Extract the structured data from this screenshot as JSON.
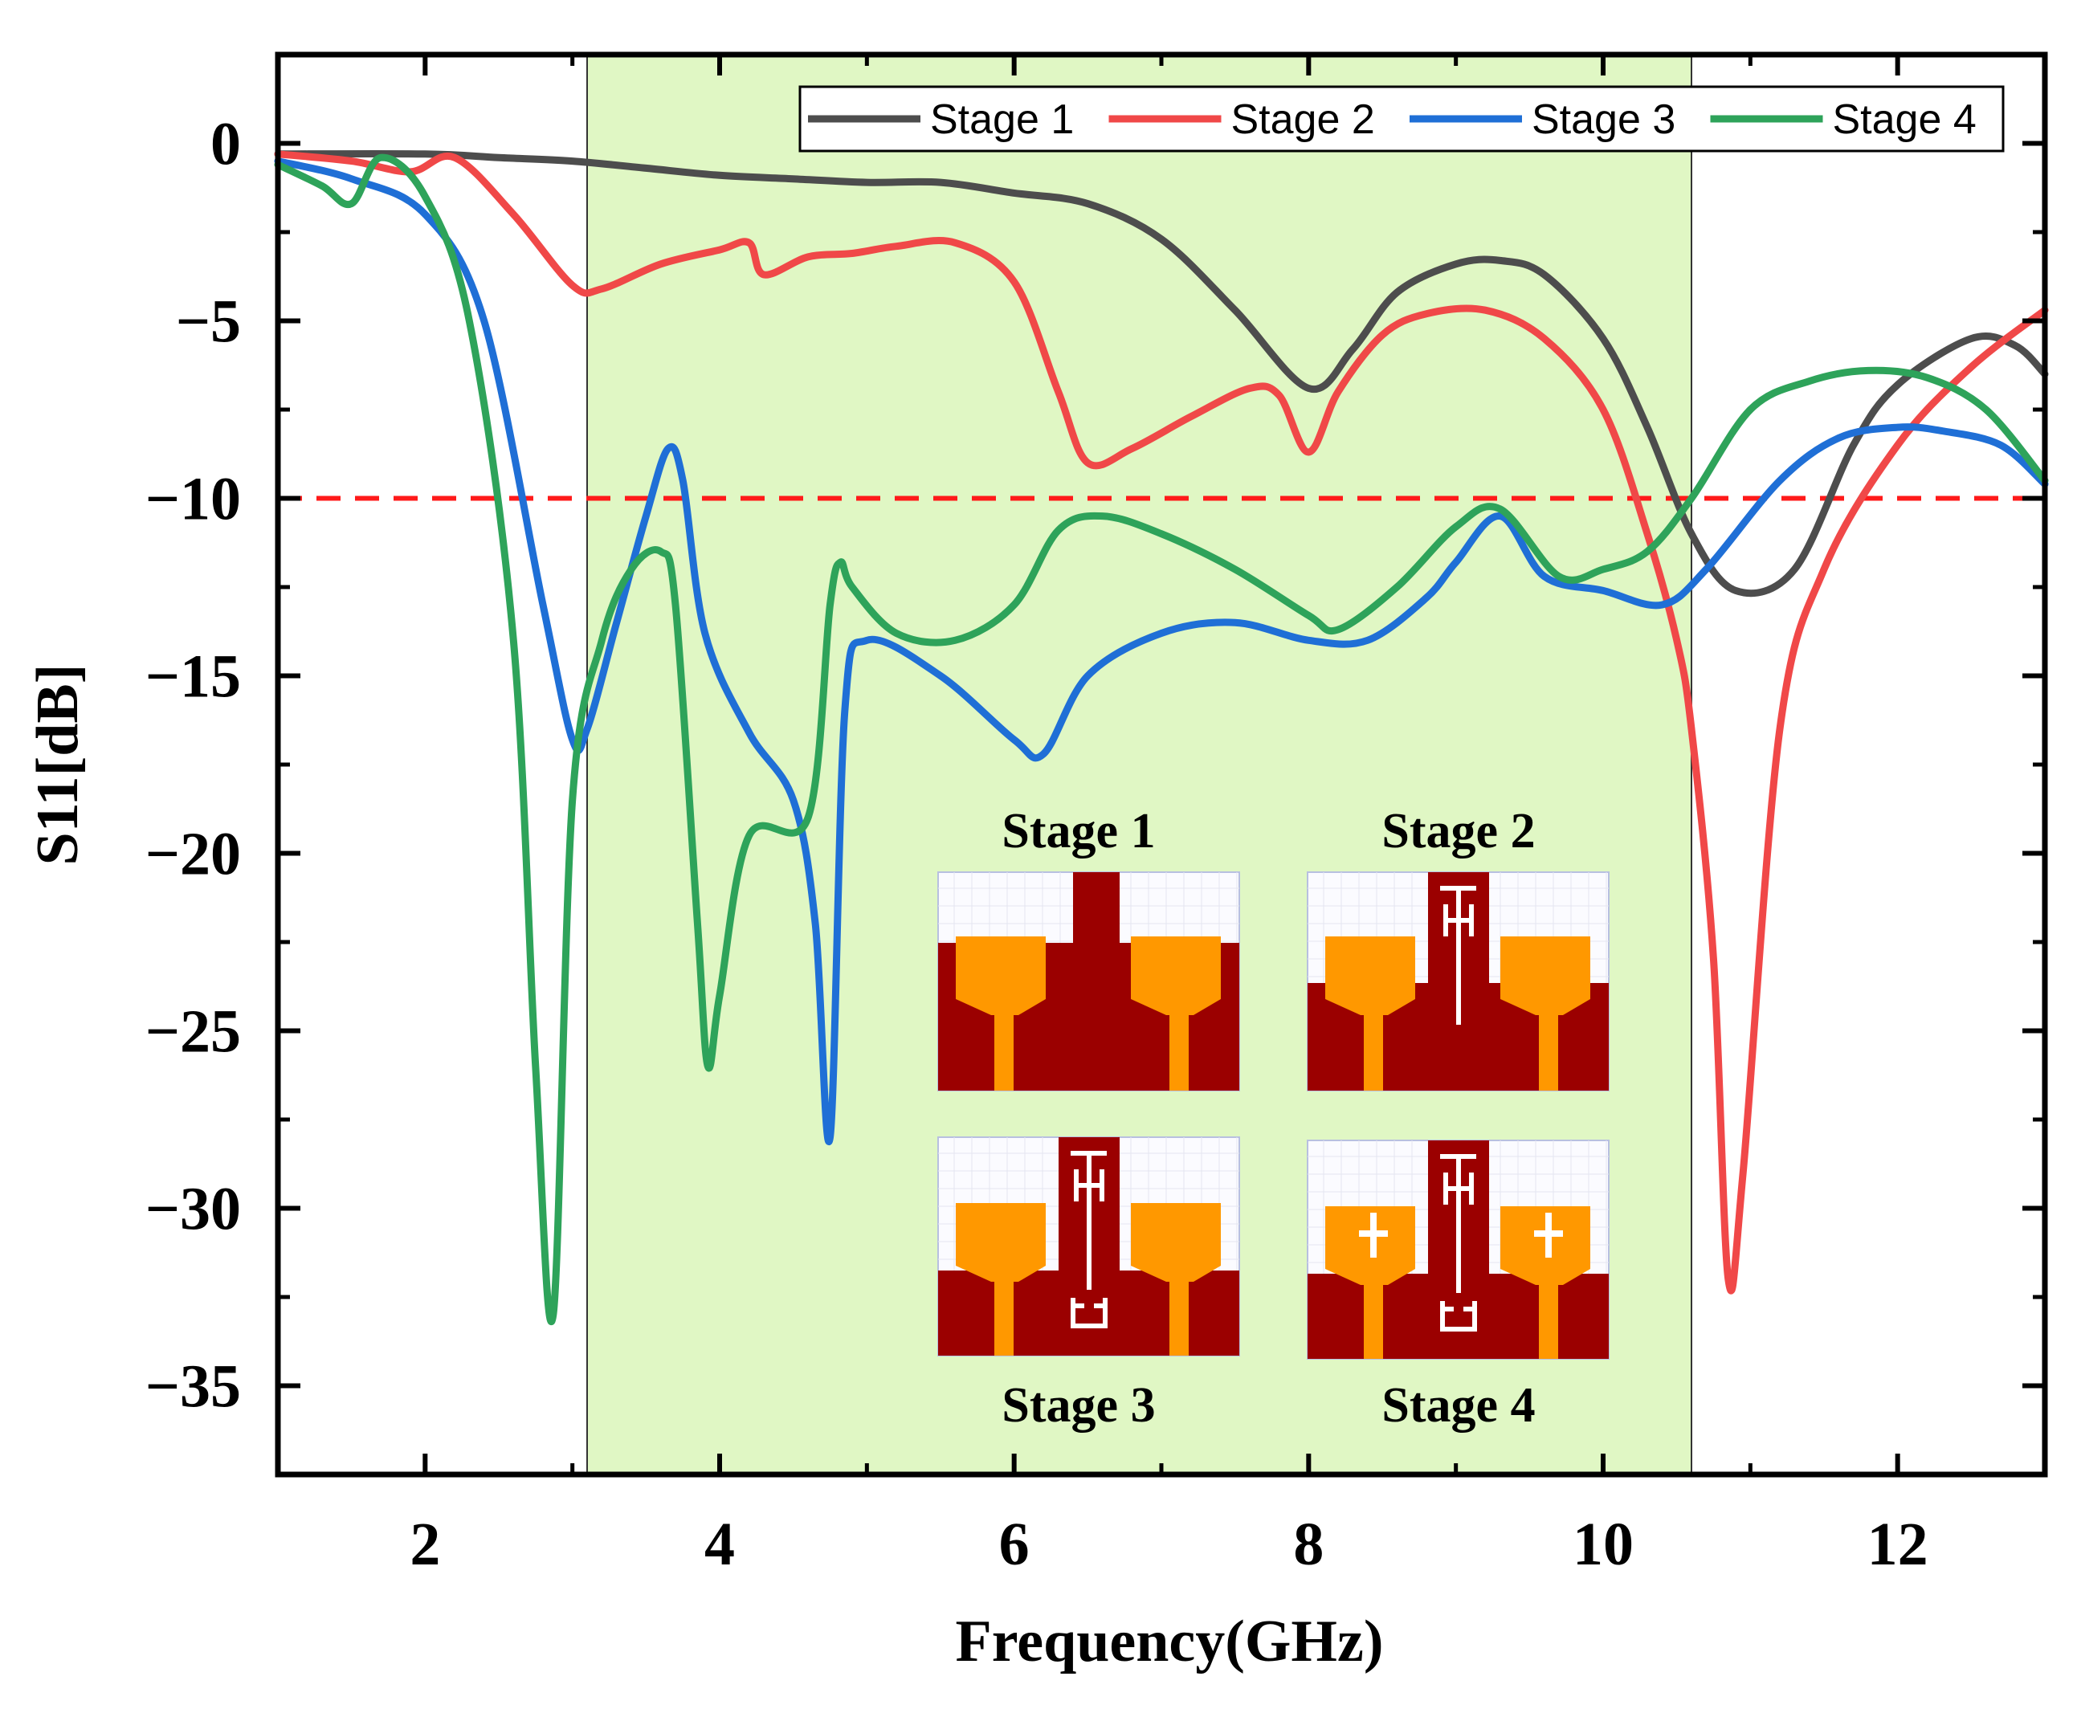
{
  "chart_data": {
    "type": "line",
    "xlabel": "Frequency(GHz)",
    "ylabel": "S11[dB]",
    "xlim": [
      1,
      13
    ],
    "ylim": [
      -37.5,
      2.5
    ],
    "xticks": [
      2,
      4,
      6,
      8,
      10,
      12
    ],
    "xtick_labels": [
      "2",
      "4",
      "6",
      "8",
      "10",
      "12"
    ],
    "yticks": [
      0,
      -5,
      -10,
      -15,
      -20,
      -25,
      -30,
      -35
    ],
    "ytick_labels": [
      "0",
      "−5",
      "−10",
      "−15",
      "−20",
      "−25",
      "−30",
      "−35"
    ],
    "grid": false,
    "legend_position": "top-right",
    "highlight_band": {
      "x_from": 3.1,
      "x_to": 10.6,
      "color": "#e0f7c4"
    },
    "reference_line": {
      "y": -10,
      "color": "#ff1a1a",
      "style": "dashed"
    },
    "series": [
      {
        "name": "Stage 1",
        "color": "#4d4d4d",
        "x": [
          1.0,
          2.0,
          2.5,
          3.0,
          3.5,
          4.0,
          4.5,
          5.0,
          5.5,
          6.0,
          6.5,
          7.0,
          7.5,
          8.0,
          8.3,
          8.6,
          9.0,
          9.3,
          9.6,
          10.0,
          10.3,
          10.6,
          10.9,
          11.3,
          11.7,
          12.0,
          12.5,
          12.8,
          13.0
        ],
        "y": [
          -0.3,
          -0.3,
          -0.4,
          -0.5,
          -0.7,
          -0.9,
          -1.0,
          -1.1,
          -1.1,
          -1.4,
          -1.7,
          -2.7,
          -4.7,
          -6.9,
          -5.8,
          -4.2,
          -3.4,
          -3.3,
          -3.7,
          -5.5,
          -8.0,
          -11.0,
          -12.6,
          -12.0,
          -8.5,
          -6.8,
          -5.5,
          -5.7,
          -6.5
        ]
      },
      {
        "name": "Stage 2",
        "color": "#f04848",
        "x": [
          1.0,
          1.5,
          1.9,
          2.2,
          2.6,
          3.0,
          3.2,
          3.6,
          4.0,
          4.2,
          4.3,
          4.6,
          4.9,
          5.2,
          5.6,
          6.0,
          6.3,
          6.5,
          6.8,
          7.2,
          7.6,
          7.8,
          8.0,
          8.2,
          8.5,
          8.8,
          9.2,
          9.6,
          10.0,
          10.3,
          10.5,
          10.6,
          10.75,
          10.85,
          10.95,
          11.2,
          11.5,
          12.0,
          12.5,
          13.0
        ],
        "y": [
          -0.3,
          -0.5,
          -0.8,
          -0.4,
          -2.0,
          -4.0,
          -4.1,
          -3.4,
          -3.0,
          -2.8,
          -3.7,
          -3.2,
          -3.1,
          -2.9,
          -2.8,
          -3.9,
          -7.0,
          -9.0,
          -8.6,
          -7.7,
          -6.9,
          -7.1,
          -8.7,
          -7.0,
          -5.4,
          -4.8,
          -4.7,
          -5.5,
          -7.5,
          -11.0,
          -14.0,
          -16.5,
          -23.0,
          -32.0,
          -29.0,
          -16.5,
          -12.0,
          -8.5,
          -6.3,
          -4.7
        ]
      },
      {
        "name": "Stage 3",
        "color": "#1f6fd6",
        "x": [
          1.0,
          1.5,
          2.0,
          2.4,
          2.8,
          3.0,
          3.1,
          3.3,
          3.5,
          3.65,
          3.75,
          3.9,
          4.2,
          4.5,
          4.65,
          4.75,
          4.85,
          5.0,
          5.5,
          6.0,
          6.2,
          6.5,
          7.0,
          7.5,
          8.0,
          8.4,
          8.8,
          9.0,
          9.3,
          9.6,
          10.0,
          10.4,
          10.7,
          11.2,
          11.6,
          12.0,
          12.3,
          12.7,
          13.0
        ],
        "y": [
          -0.5,
          -1.0,
          -2.0,
          -5.0,
          -13.0,
          -16.8,
          -16.5,
          -13.5,
          -10.5,
          -8.6,
          -9.5,
          -13.8,
          -16.6,
          -18.5,
          -22.0,
          -28.0,
          -16.0,
          -14.0,
          -15.0,
          -16.8,
          -17.2,
          -15.0,
          -13.8,
          -13.5,
          -14.0,
          -14.0,
          -12.8,
          -11.8,
          -10.5,
          -12.2,
          -12.6,
          -13.0,
          -12.0,
          -9.5,
          -8.3,
          -8.0,
          -8.1,
          -8.5,
          -9.6
        ]
      },
      {
        "name": "Stage 4",
        "color": "#2ea35a",
        "x": [
          1.0,
          1.3,
          1.5,
          1.7,
          2.0,
          2.3,
          2.6,
          2.75,
          2.87,
          3.0,
          3.2,
          3.4,
          3.6,
          3.7,
          3.85,
          3.92,
          4.0,
          4.2,
          4.6,
          4.75,
          4.82,
          4.9,
          5.2,
          5.6,
          6.0,
          6.3,
          6.6,
          7.0,
          7.5,
          8.0,
          8.2,
          8.6,
          9.0,
          9.3,
          9.7,
          10.0,
          10.3,
          10.6,
          11.0,
          11.4,
          11.8,
          12.2,
          12.6,
          13.0
        ],
        "y": [
          -0.6,
          -1.2,
          -1.7,
          -0.4,
          -1.5,
          -5.0,
          -14.0,
          -26.0,
          -33.0,
          -18.5,
          -14.0,
          -12.0,
          -11.5,
          -13.0,
          -22.0,
          -26.0,
          -24.0,
          -19.5,
          -19.0,
          -13.0,
          -11.8,
          -12.5,
          -13.8,
          -14.0,
          -13.0,
          -10.9,
          -10.5,
          -11.0,
          -12.0,
          -13.3,
          -13.7,
          -12.5,
          -10.8,
          -10.3,
          -12.2,
          -12.0,
          -11.5,
          -10.0,
          -7.5,
          -6.7,
          -6.4,
          -6.6,
          -7.5,
          -9.5
        ]
      }
    ]
  },
  "insets": {
    "stage1_label": "Stage 1",
    "stage2_label": "Stage 2",
    "stage3_label": "Stage 3",
    "stage4_label": "Stage 4",
    "patch_color": "#ff9800",
    "ground_color": "#9b0000"
  }
}
